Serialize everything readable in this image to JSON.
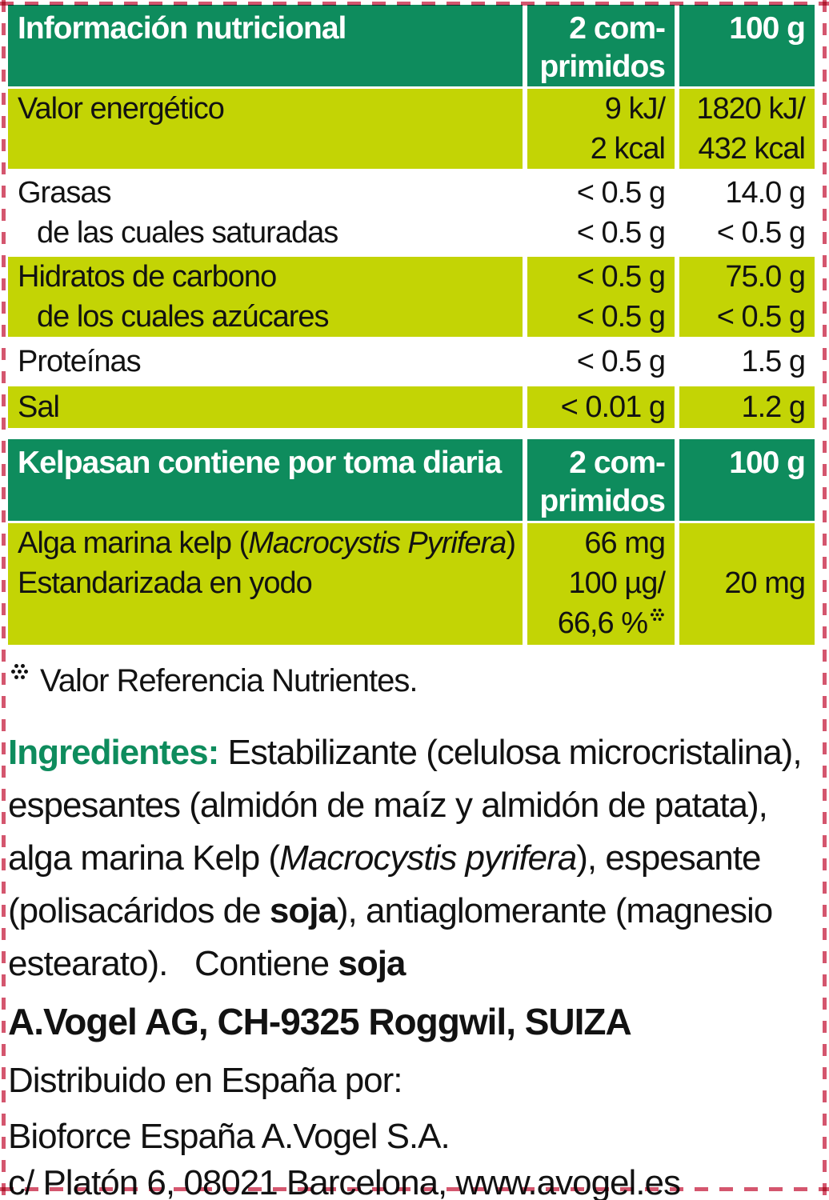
{
  "colors": {
    "header_green": "#0e8c5d",
    "row_yellow": "#c3d405",
    "border_pink": "#d4566e",
    "text_black": "#121212",
    "header_text": "#ffffff"
  },
  "table1": {
    "header": {
      "col1": "Información nutricional",
      "col2_line1": "2 com-",
      "col2_line2": "primidos",
      "col3": "100 g"
    },
    "blocks": [
      {
        "bg": "yellow",
        "l1": {
          "name": "Valor energético",
          "v2": "9 kJ/",
          "v3": "1820 kJ/"
        },
        "l2": {
          "name": "",
          "v2": "2 kcal",
          "v3": "432 kcal"
        }
      },
      {
        "bg": "white",
        "l1": {
          "name": "Grasas",
          "v2": "< 0.5 g",
          "v3": "14.0 g"
        },
        "l2": {
          "name": "de las cuales saturadas",
          "v2": "< 0.5 g",
          "v3": "< 0.5 g"
        }
      },
      {
        "bg": "yellow",
        "l1": {
          "name": "Hidratos de carbono",
          "v2": "< 0.5 g",
          "v3": "75.0 g"
        },
        "l2": {
          "name": "de los cuales azúcares",
          "v2": "< 0.5 g",
          "v3": "< 0.5 g"
        }
      },
      {
        "bg": "white",
        "l1": {
          "name": "Proteínas",
          "v2": "< 0.5 g",
          "v3": "1.5 g"
        }
      },
      {
        "bg": "yellow",
        "l1": {
          "name": "Sal",
          "v2": "< 0.01 g",
          "v3": "1.2 g"
        }
      }
    ]
  },
  "table2": {
    "header": {
      "col1": "Kelpasan contiene por toma diaria",
      "col2_line1": "2 com-",
      "col2_line2": "primidos",
      "col3": "100 g"
    },
    "row": {
      "name_line1_segments": [
        {
          "t": "Alga marina kelp ("
        },
        {
          "t": "Macrocystis Pyrifera",
          "i": true
        },
        {
          "t": ")"
        }
      ],
      "name_line2": "Estandarizada en yodo",
      "v2_line1": "66 mg",
      "v2_line2": "100 µg/",
      "v2_line3": "66,6 %",
      "v2_line3_marker_icon": "dots-asterisk",
      "v3": "20 mg"
    }
  },
  "footnote": {
    "marker_icon": "dots-asterisk",
    "text": "Valor Referencia Nutrientes."
  },
  "ingredients": {
    "segments": [
      {
        "t": "Ingredientes: ",
        "b": true,
        "color": "#0e8c5d"
      },
      {
        "t": "Estabilizante (celulosa microcristalina), espesantes (almidón de maíz y almidón de patata), alga marina Kelp ("
      },
      {
        "t": "Macrocystis pyrifera",
        "i": true
      },
      {
        "t": "), espesante (polisacáridos de "
      },
      {
        "t": "soja",
        "b": true
      },
      {
        "t": "), antiaglomerante (magnesio estearato).   Contiene "
      },
      {
        "t": "soja",
        "b": true
      }
    ]
  },
  "address": {
    "line1": "A.Vogel AG, CH-9325 Roggwil, SUIZA",
    "line2": "Distribuido en España por:",
    "line3": "Bioforce España A.Vogel S.A.",
    "line4": "c/ Platón 6, 08021 Barcelona, www.avogel.es"
  }
}
